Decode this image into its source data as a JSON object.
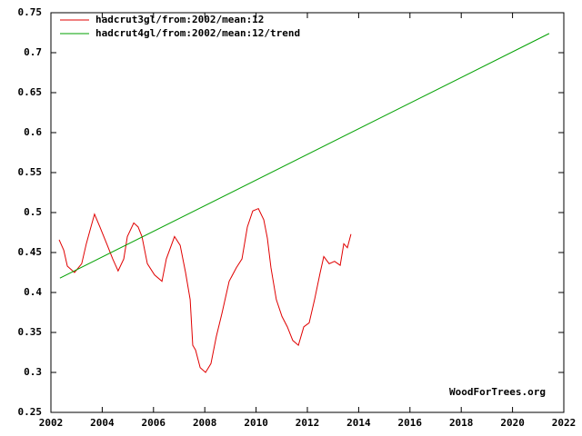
{
  "chart_data": {
    "type": "line",
    "annotation": "WoodForTrees.org",
    "xlim": [
      2002,
      2022
    ],
    "xticks": [
      2002,
      2004,
      2006,
      2008,
      2010,
      2012,
      2014,
      2016,
      2018,
      2020,
      2022
    ],
    "ylim": [
      0.25,
      0.75
    ],
    "yticks": [
      0.25,
      0.3,
      0.35,
      0.4,
      0.45,
      0.5,
      0.55,
      0.6,
      0.65,
      0.7,
      0.75
    ],
    "legend": "top-left",
    "grid": false,
    "series": [
      {
        "name": "hadcrut3gl/from:2002/mean:12",
        "color": "#e00000",
        "x": [
          2002.32,
          2002.5,
          2002.64,
          2002.92,
          2003.2,
          2003.38,
          2003.56,
          2003.7,
          2003.91,
          2004.2,
          2004.41,
          2004.62,
          2004.84,
          2004.98,
          2005.23,
          2005.4,
          2005.55,
          2005.76,
          2006.04,
          2006.33,
          2006.5,
          2006.82,
          2007.04,
          2007.25,
          2007.43,
          2007.53,
          2007.64,
          2007.82,
          2008.03,
          2008.24,
          2008.45,
          2008.67,
          2008.95,
          2009.23,
          2009.45,
          2009.66,
          2009.87,
          2010.09,
          2010.3,
          2010.44,
          2010.58,
          2010.79,
          2011.01,
          2011.22,
          2011.43,
          2011.65,
          2011.86,
          2012.07,
          2012.28,
          2012.5,
          2012.64,
          2012.85,
          2013.06,
          2013.28,
          2013.42,
          2013.56,
          2013.7
        ],
        "values": [
          0.466,
          0.453,
          0.433,
          0.425,
          0.436,
          0.461,
          0.482,
          0.498,
          0.482,
          0.459,
          0.442,
          0.427,
          0.442,
          0.47,
          0.487,
          0.482,
          0.47,
          0.436,
          0.422,
          0.414,
          0.442,
          0.47,
          0.459,
          0.425,
          0.391,
          0.334,
          0.328,
          0.306,
          0.3,
          0.311,
          0.345,
          0.374,
          0.414,
          0.431,
          0.442,
          0.482,
          0.502,
          0.505,
          0.491,
          0.468,
          0.431,
          0.391,
          0.37,
          0.357,
          0.34,
          0.334,
          0.357,
          0.362,
          0.391,
          0.425,
          0.445,
          0.436,
          0.439,
          0.434,
          0.461,
          0.456,
          0.473
        ]
      },
      {
        "name": "hadcrut4gl/from:2002/mean:12/trend",
        "color": "#00a000",
        "x": [
          2002.35,
          2021.43
        ],
        "values": [
          0.418,
          0.724
        ]
      }
    ]
  }
}
